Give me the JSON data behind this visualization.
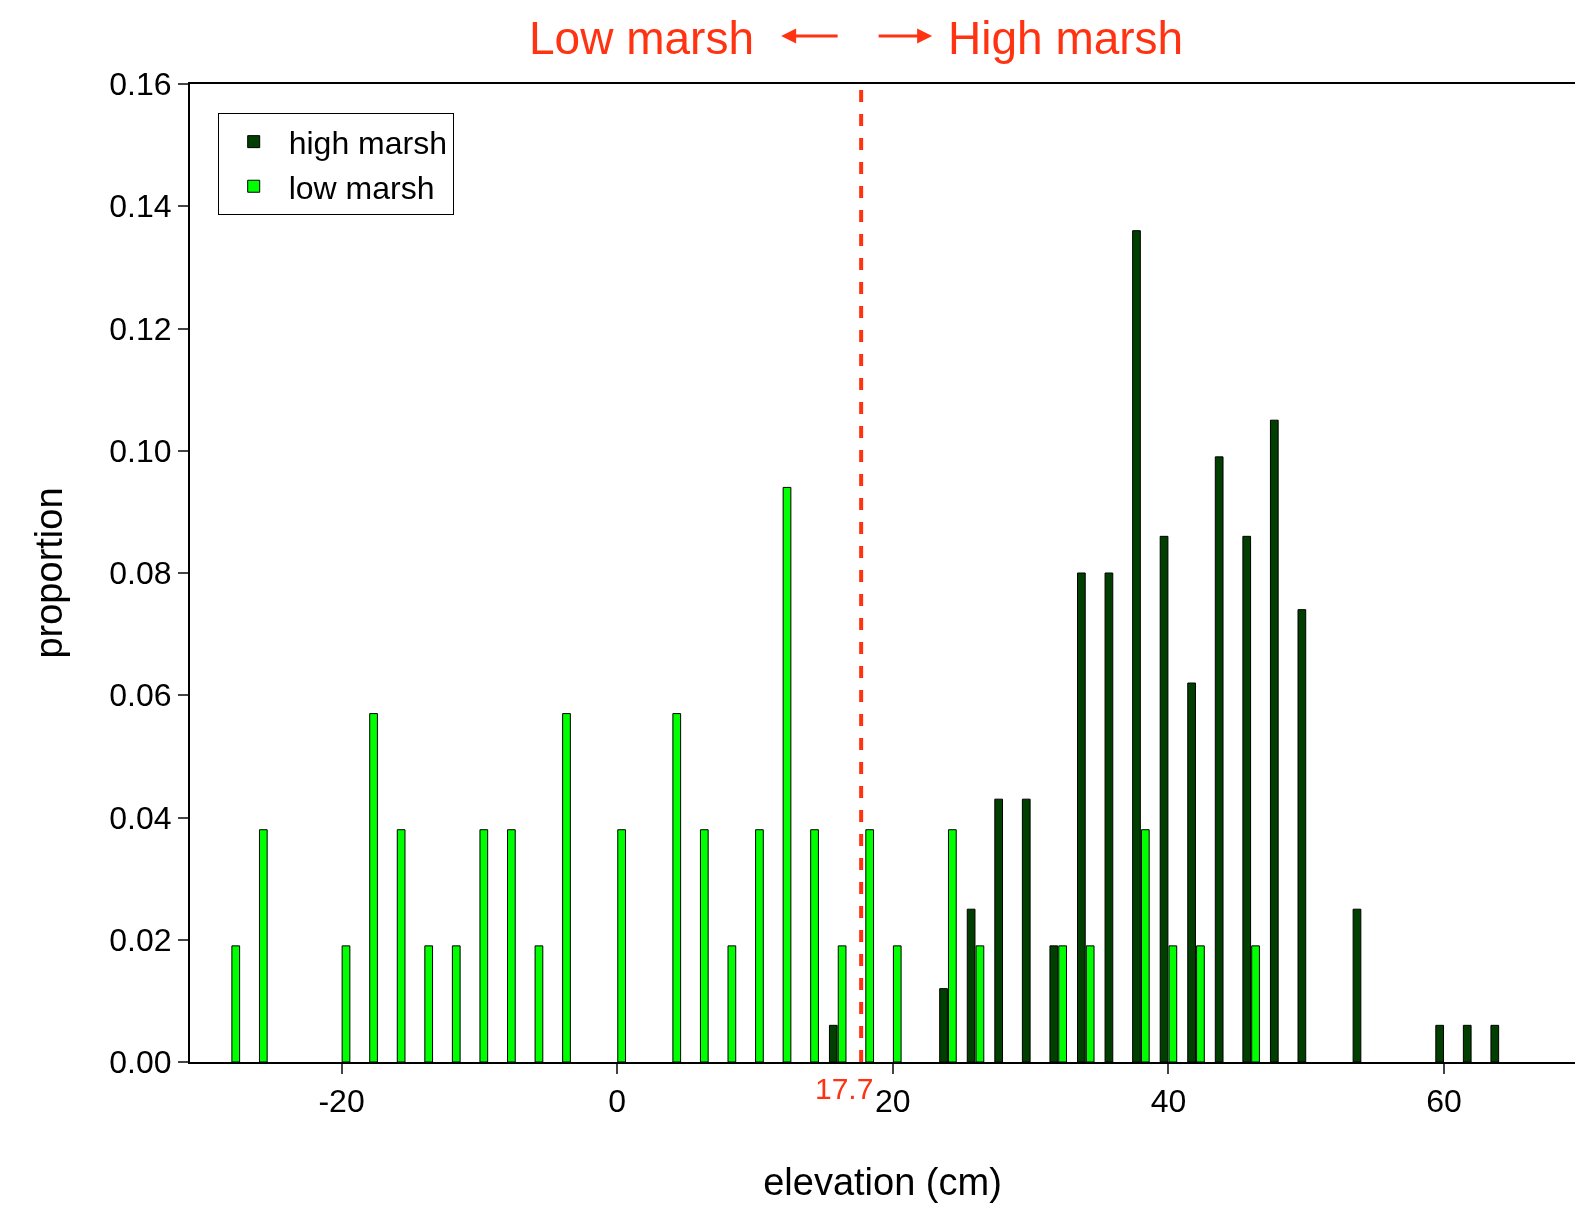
{
  "chart_data": {
    "type": "bar",
    "xlabel": "elevation (cm)",
    "ylabel": "proportion",
    "x": [
      -28,
      -26,
      -24,
      -22,
      -20,
      -18,
      -16,
      -14,
      -12,
      -10,
      -8,
      -6,
      -4,
      -2,
      0,
      2,
      4,
      6,
      8,
      10,
      12,
      14,
      16,
      18,
      20,
      22,
      24,
      26,
      28,
      30,
      32,
      34,
      36,
      38,
      40,
      42,
      44,
      46,
      48,
      50,
      52,
      54,
      56,
      58,
      60,
      62,
      64
    ],
    "series": [
      {
        "name": "high marsh",
        "color": "#003f00",
        "values": [
          null,
          null,
          null,
          null,
          null,
          null,
          null,
          null,
          null,
          null,
          null,
          null,
          null,
          null,
          null,
          null,
          null,
          null,
          null,
          null,
          null,
          null,
          0.006,
          null,
          null,
          null,
          0.012,
          0.025,
          0.043,
          0.043,
          0.019,
          0.08,
          0.08,
          0.136,
          0.086,
          0.062,
          0.099,
          0.086,
          0.105,
          0.074,
          null,
          0.025,
          null,
          null,
          0.006,
          0.006,
          0.006
        ]
      },
      {
        "name": "low marsh",
        "color": "#00ff00",
        "values": [
          0.019,
          0.038,
          null,
          null,
          0.019,
          0.057,
          0.038,
          0.019,
          0.019,
          0.038,
          0.038,
          0.019,
          0.057,
          null,
          0.038,
          null,
          0.057,
          0.038,
          0.019,
          0.038,
          0.094,
          0.038,
          0.019,
          0.038,
          0.019,
          null,
          0.038,
          0.019,
          null,
          null,
          0.019,
          0.019,
          null,
          0.038,
          0.019,
          0.019,
          null,
          0.019,
          null,
          null,
          null,
          null,
          null,
          null,
          null,
          null,
          null
        ]
      }
    ],
    "xlim": [
      -31,
      69.5
    ],
    "xticks": [
      -20,
      0,
      20,
      40,
      60
    ],
    "ylim": [
      0,
      0.16
    ],
    "yticks": [
      {
        "value": 0,
        "label": "0.00"
      },
      {
        "value": 0.02,
        "label": "0.02"
      },
      {
        "value": 0.04,
        "label": "0.04"
      },
      {
        "value": 0.06,
        "label": "0.06"
      },
      {
        "value": 0.08,
        "label": "0.08"
      },
      {
        "value": 0.1,
        "label": "0.10"
      },
      {
        "value": 0.12,
        "label": "0.12"
      },
      {
        "value": 0.14,
        "label": "0.14"
      },
      {
        "value": 0.16,
        "label": "0.16"
      }
    ],
    "ref_lines": [
      {
        "axis": "x",
        "value": 17.7,
        "label": "17.7",
        "color": "#ff3311",
        "line_style": "dashed"
      }
    ],
    "annotations": [
      "Low marsh",
      "High marsh"
    ],
    "legend": "top left"
  }
}
